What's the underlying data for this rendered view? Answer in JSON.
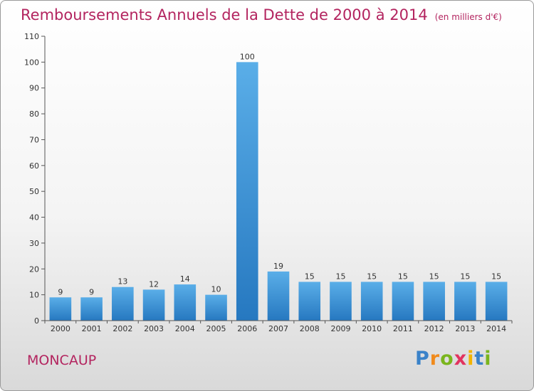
{
  "header": {
    "title": "Remboursements Annuels de la Dette de 2000 à 2014",
    "subtitle": "(en milliers d'€)"
  },
  "footer": {
    "location": "MONCAUP",
    "logo_letters": [
      "P",
      "r",
      "o",
      "x",
      "i",
      "t",
      "i"
    ]
  },
  "colors": {
    "title": "#b3245f",
    "bar_light": "#5aaee8",
    "bar_dark": "#2678c0"
  },
  "chart_data": {
    "type": "bar",
    "title": "Remboursements Annuels de la Dette de 2000 à 2014",
    "subtitle": "(en milliers d'€)",
    "xlabel": "",
    "ylabel": "",
    "categories": [
      "2000",
      "2001",
      "2002",
      "2003",
      "2004",
      "2005",
      "2006",
      "2007",
      "2008",
      "2009",
      "2010",
      "2011",
      "2012",
      "2013",
      "2014"
    ],
    "values": [
      9,
      9,
      13,
      12,
      14,
      10,
      100,
      19,
      15,
      15,
      15,
      15,
      15,
      15,
      15
    ],
    "ylim": [
      0,
      110
    ],
    "yticks": [
      0,
      10,
      20,
      30,
      40,
      50,
      60,
      70,
      80,
      90,
      100,
      110
    ],
    "grid": false,
    "legend": "none"
  }
}
